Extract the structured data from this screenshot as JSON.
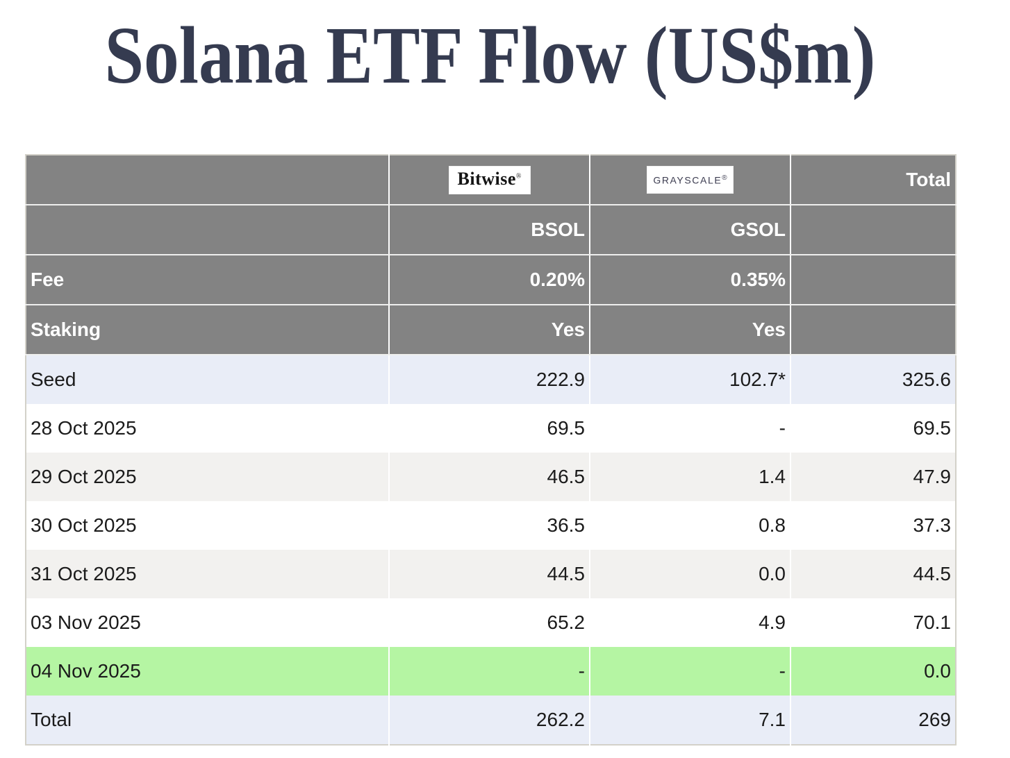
{
  "title": "Solana ETF Flow (US$m)",
  "table": {
    "header": {
      "bitwise_logo": "Bitwise",
      "bitwise_logo_mark": "®",
      "grayscale_logo": "GRAYSCALE",
      "grayscale_logo_mark": "®",
      "total_label": "Total",
      "bitwise_ticker": "BSOL",
      "grayscale_ticker": "GSOL",
      "fee_label": "Fee",
      "fee_bitwise": "0.20%",
      "fee_grayscale": "0.35%",
      "staking_label": "Staking",
      "staking_bitwise": "Yes",
      "staking_grayscale": "Yes"
    },
    "rows": [
      {
        "label": "Seed",
        "bsol": "222.9",
        "gsol": "102.7*",
        "total": "325.6",
        "highlight": "blue"
      },
      {
        "label": "28 Oct 2025",
        "bsol": "69.5",
        "gsol": "-",
        "total": "69.5",
        "highlight": "none"
      },
      {
        "label": "29 Oct 2025",
        "bsol": "46.5",
        "gsol": "1.4",
        "total": "47.9",
        "highlight": "gray"
      },
      {
        "label": "30 Oct 2025",
        "bsol": "36.5",
        "gsol": "0.8",
        "total": "37.3",
        "highlight": "none"
      },
      {
        "label": "31 Oct 2025",
        "bsol": "44.5",
        "gsol": "0.0",
        "total": "44.5",
        "highlight": "gray"
      },
      {
        "label": "03 Nov 2025",
        "bsol": "65.2",
        "gsol": "4.9",
        "total": "70.1",
        "highlight": "none"
      },
      {
        "label": "04 Nov 2025",
        "bsol": "-",
        "gsol": "-",
        "total": "0.0",
        "highlight": "green"
      },
      {
        "label": "Total",
        "bsol": "262.2",
        "gsol": "7.1",
        "total": "269",
        "highlight": "blue"
      }
    ],
    "colors": {
      "header_bg": "#838383",
      "header_text": "#ffffff",
      "row_blue": "#e9edf7",
      "row_gray": "#f2f1ef",
      "row_green": "#b5f5a3",
      "title_navy": "#353b50",
      "grayscale_logo_navy": "#3c3c50",
      "bitwise_logo_black": "#141414"
    }
  },
  "chart_data": {
    "type": "table",
    "title": "Solana ETF Flow (US$m)",
    "funds": [
      {
        "issuer": "Bitwise",
        "ticker": "BSOL",
        "fee": "0.20%",
        "staking": "Yes"
      },
      {
        "issuer": "Grayscale",
        "ticker": "GSOL",
        "fee": "0.35%",
        "staking": "Yes"
      }
    ],
    "categories": [
      "Seed",
      "28 Oct 2025",
      "29 Oct 2025",
      "30 Oct 2025",
      "31 Oct 2025",
      "03 Nov 2025",
      "04 Nov 2025",
      "Total"
    ],
    "series": [
      {
        "name": "BSOL",
        "values": [
          222.9,
          69.5,
          46.5,
          36.5,
          44.5,
          65.2,
          null,
          262.2
        ]
      },
      {
        "name": "GSOL",
        "values": [
          102.7,
          null,
          1.4,
          0.8,
          0.0,
          4.9,
          null,
          7.1
        ]
      },
      {
        "name": "Total",
        "values": [
          325.6,
          69.5,
          47.9,
          37.3,
          44.5,
          70.1,
          0.0,
          269
        ]
      }
    ],
    "annotations": [
      "102.7 seed value marked with asterisk (102.7*)",
      "04 Nov 2025 row highlighted green with dashes for BSOL and GSOL"
    ]
  }
}
